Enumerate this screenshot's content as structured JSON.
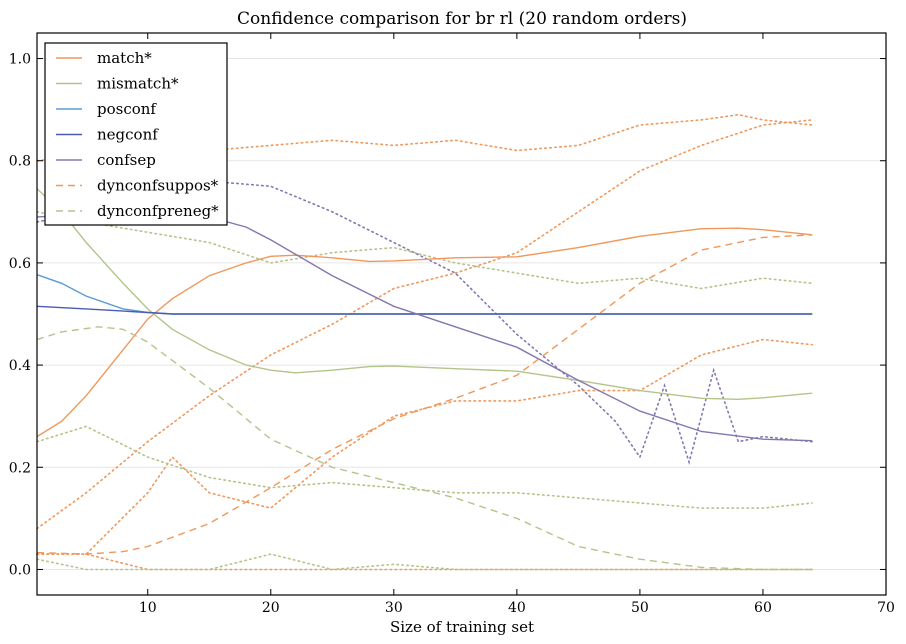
{
  "chart_data": {
    "type": "line",
    "title": "Confidence comparison for br rl (20 random orders)",
    "xlabel": "Size of training set",
    "ylabel": "",
    "xlim": [
      1,
      70
    ],
    "ylim": [
      -0.05,
      1.05
    ],
    "xticks": [
      10,
      20,
      30,
      40,
      50,
      60,
      70
    ],
    "yticks": [
      0.0,
      0.2,
      0.4,
      0.6,
      0.8,
      1.0
    ],
    "ytick_labels": [
      "0.0",
      "0.2",
      "0.4",
      "0.6",
      "0.8",
      "1.0"
    ],
    "grid": "horizontal",
    "legend_position": "top-left",
    "series": [
      {
        "name": "match*",
        "color": "#f0975a",
        "style": "solid",
        "x": [
          1,
          3,
          5,
          8,
          10,
          12,
          15,
          18,
          20,
          22,
          25,
          28,
          30,
          35,
          40,
          45,
          50,
          55,
          58,
          60,
          64
        ],
        "y": [
          0.26,
          0.29,
          0.34,
          0.43,
          0.49,
          0.53,
          0.575,
          0.6,
          0.613,
          0.615,
          0.61,
          0.603,
          0.604,
          0.61,
          0.612,
          0.63,
          0.652,
          0.667,
          0.668,
          0.665,
          0.655
        ]
      },
      {
        "name": "mismatch*",
        "color": "#b3c48a",
        "style": "solid",
        "x": [
          1,
          3,
          5,
          8,
          10,
          12,
          15,
          18,
          20,
          22,
          25,
          28,
          30,
          35,
          40,
          45,
          50,
          55,
          58,
          60,
          64
        ],
        "y": [
          0.745,
          0.7,
          0.64,
          0.56,
          0.51,
          0.47,
          0.43,
          0.4,
          0.39,
          0.385,
          0.39,
          0.397,
          0.398,
          0.393,
          0.388,
          0.37,
          0.35,
          0.335,
          0.333,
          0.336,
          0.345
        ]
      },
      {
        "name": "posconf",
        "color": "#5b9bd5",
        "style": "solid",
        "x": [
          1,
          3,
          5,
          8,
          10,
          12,
          20,
          40,
          64
        ],
        "y": [
          0.577,
          0.56,
          0.535,
          0.51,
          0.503,
          0.5,
          0.5,
          0.5,
          0.5
        ]
      },
      {
        "name": "negconf",
        "color": "#4a5cb0",
        "style": "solid",
        "x": [
          1,
          5,
          10,
          12,
          20,
          40,
          64
        ],
        "y": [
          0.515,
          0.51,
          0.503,
          0.5,
          0.5,
          0.5,
          0.5
        ]
      },
      {
        "name": "confsep",
        "color": "#8576b0",
        "style": "solid",
        "x": [
          1,
          5,
          10,
          15,
          18,
          20,
          25,
          30,
          35,
          40,
          45,
          50,
          55,
          60,
          64
        ],
        "y": [
          0.69,
          0.695,
          0.7,
          0.69,
          0.67,
          0.645,
          0.575,
          0.515,
          0.475,
          0.435,
          0.37,
          0.31,
          0.27,
          0.255,
          0.252
        ]
      },
      {
        "name": "dynconfsuppos*",
        "color": "#f0975a",
        "style": "dashed",
        "x": [
          1,
          5,
          8,
          10,
          15,
          20,
          25,
          30,
          35,
          40,
          45,
          50,
          55,
          60,
          64
        ],
        "y": [
          0.033,
          0.03,
          0.035,
          0.045,
          0.09,
          0.16,
          0.235,
          0.295,
          0.335,
          0.38,
          0.47,
          0.56,
          0.625,
          0.65,
          0.655
        ]
      },
      {
        "name": "dynconfpreneg*",
        "color": "#b3c48a",
        "style": "dashed",
        "x": [
          1,
          3,
          6,
          8,
          10,
          15,
          20,
          25,
          30,
          35,
          40,
          45,
          50,
          55,
          60,
          64
        ],
        "y": [
          0.45,
          0.465,
          0.475,
          0.47,
          0.445,
          0.355,
          0.255,
          0.2,
          0.17,
          0.14,
          0.1,
          0.045,
          0.02,
          0.004,
          0.0,
          0.0
        ]
      }
    ],
    "envelopes": [
      {
        "color": "#f0975a",
        "x": [
          1,
          5,
          10,
          15,
          20,
          25,
          30,
          35,
          40,
          45,
          50,
          55,
          58,
          60,
          64
        ],
        "y": [
          0.8,
          0.81,
          0.82,
          0.82,
          0.83,
          0.84,
          0.83,
          0.84,
          0.82,
          0.83,
          0.87,
          0.88,
          0.89,
          0.88,
          0.87
        ]
      },
      {
        "color": "#f0975a",
        "x": [
          1,
          5,
          10,
          15,
          20,
          25,
          30,
          35,
          40,
          45,
          50,
          55,
          60,
          64
        ],
        "y": [
          0.08,
          0.15,
          0.25,
          0.34,
          0.42,
          0.48,
          0.55,
          0.58,
          0.62,
          0.7,
          0.78,
          0.83,
          0.87,
          0.88
        ]
      },
      {
        "color": "#f0975a",
        "x": [
          1,
          5,
          10,
          12,
          15,
          20,
          25,
          30,
          35,
          40,
          45,
          50,
          55,
          60,
          64
        ],
        "y": [
          0.03,
          0.03,
          0.15,
          0.22,
          0.15,
          0.12,
          0.22,
          0.3,
          0.33,
          0.33,
          0.35,
          0.35,
          0.42,
          0.45,
          0.44
        ]
      },
      {
        "color": "#f0975a",
        "x": [
          1,
          5,
          10,
          20,
          30,
          40,
          50,
          55,
          60,
          64
        ],
        "y": [
          0.03,
          0.03,
          0.0,
          0.0,
          0.0,
          0.0,
          0.0,
          0.0,
          0.0,
          0.0
        ]
      },
      {
        "color": "#8576b0",
        "x": [
          1,
          5,
          10,
          15,
          20,
          25,
          30,
          35,
          40,
          45,
          48,
          50,
          52,
          54,
          56,
          58,
          60,
          64
        ],
        "y": [
          0.68,
          0.7,
          0.72,
          0.76,
          0.75,
          0.7,
          0.64,
          0.58,
          0.46,
          0.36,
          0.29,
          0.22,
          0.36,
          0.21,
          0.39,
          0.25,
          0.26,
          0.25
        ]
      },
      {
        "color": "#b3c48a",
        "x": [
          1,
          5,
          10,
          15,
          20,
          25,
          30,
          35,
          40,
          45,
          50,
          55,
          60,
          64
        ],
        "y": [
          0.7,
          0.68,
          0.66,
          0.64,
          0.6,
          0.62,
          0.63,
          0.6,
          0.58,
          0.56,
          0.57,
          0.55,
          0.57,
          0.56
        ]
      },
      {
        "color": "#b3c48a",
        "x": [
          1,
          5,
          10,
          15,
          20,
          25,
          30,
          35,
          40,
          45,
          50,
          55,
          60,
          64
        ],
        "y": [
          0.25,
          0.28,
          0.22,
          0.18,
          0.16,
          0.17,
          0.16,
          0.15,
          0.15,
          0.14,
          0.13,
          0.12,
          0.12,
          0.13
        ]
      },
      {
        "color": "#b3c48a",
        "x": [
          1,
          5,
          10,
          15,
          20,
          25,
          30,
          35,
          40,
          45,
          50,
          55,
          60,
          64
        ],
        "y": [
          0.02,
          0.0,
          0.0,
          0.0,
          0.03,
          0.0,
          0.01,
          0.0,
          0.0,
          0.0,
          0.0,
          0.0,
          0.0,
          0.0
        ]
      }
    ]
  }
}
